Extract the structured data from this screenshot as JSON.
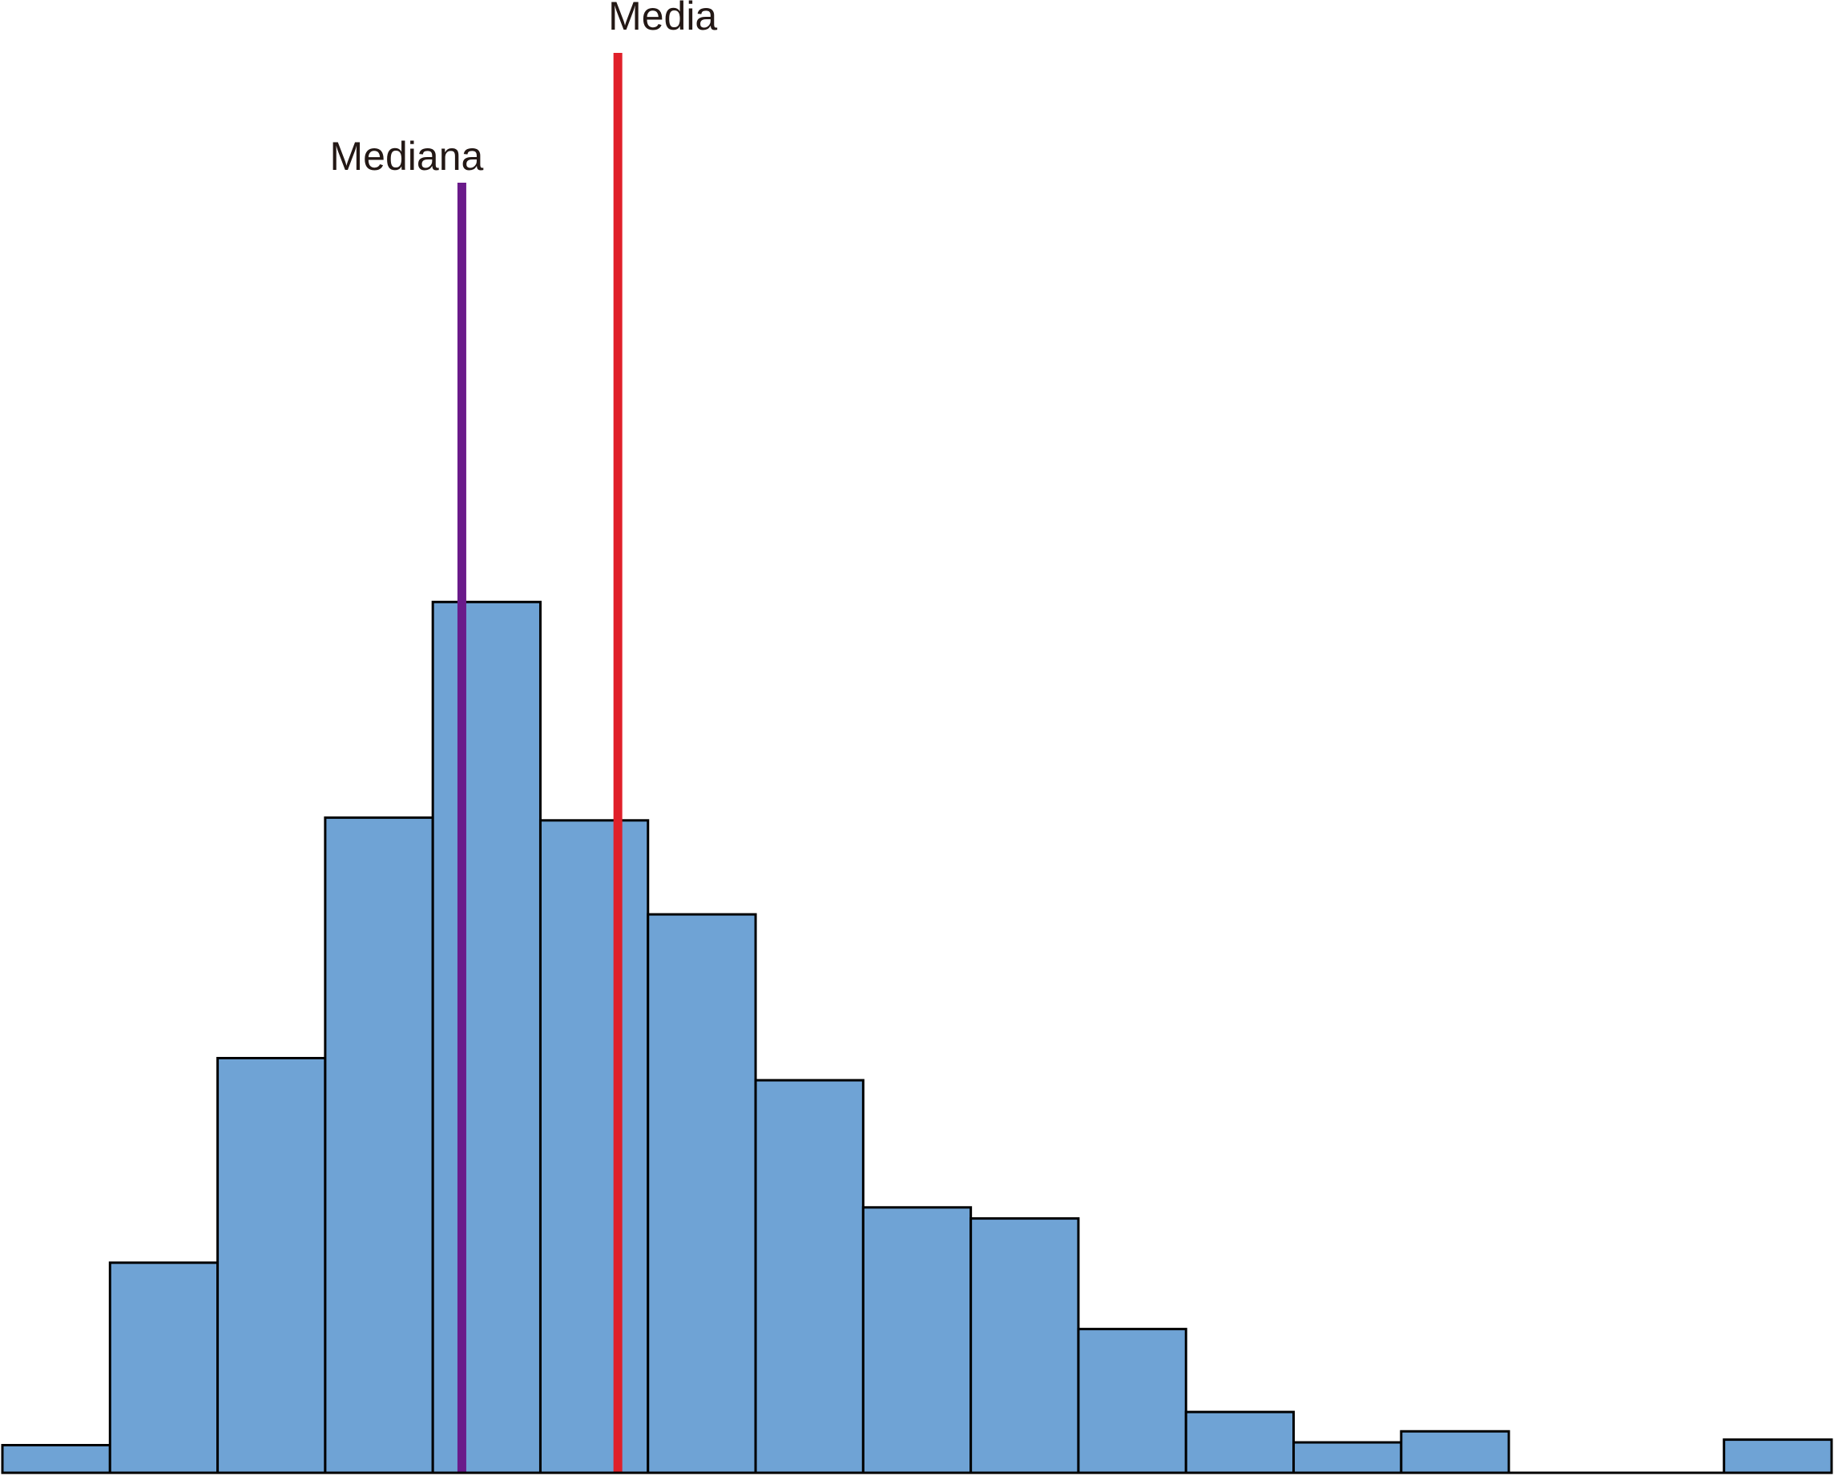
{
  "chart_data": {
    "type": "bar",
    "bins": 17,
    "values": [
      1.0,
      7.6,
      15.0,
      23.7,
      31.5,
      23.6,
      20.2,
      14.2,
      9.6,
      9.2,
      5.2,
      2.2,
      1.1,
      1.5,
      0,
      0,
      1.2
    ],
    "ylim": [
      0,
      40
    ],
    "bar_color": "#6fa3d5",
    "bar_edge_color": "#000000",
    "markers": [
      {
        "key": "mediana",
        "label": "Mediana",
        "x": 4.27,
        "color": "#6a1a8a"
      },
      {
        "key": "media",
        "label": "Media",
        "x": 5.72,
        "color": "#e0202a"
      }
    ]
  }
}
